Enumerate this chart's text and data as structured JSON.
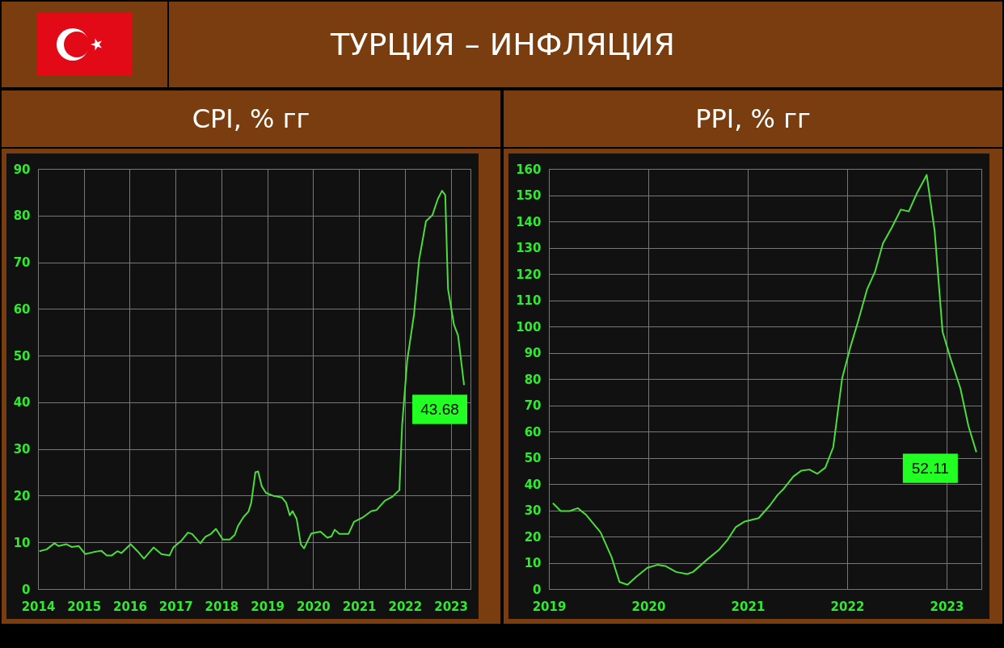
{
  "chart_data": [
    {
      "type": "other",
      "title": "ТУРЦИЯ – ИНФЛЯЦИЯ"
    },
    {
      "type": "line",
      "title": "CPI, % гг",
      "xlim": [
        2014,
        2023.43
      ],
      "xticks": [
        2014,
        2015,
        2016,
        2017,
        2018,
        2019,
        2020,
        2021,
        2022,
        2023
      ],
      "ylim": [
        0,
        90
      ],
      "yticks": [
        0,
        10,
        20,
        30,
        40,
        50,
        60,
        70,
        80,
        90
      ],
      "grid": true,
      "series": [
        {
          "color": "#4cdc3c",
          "x": [
            2014.03,
            2014.19,
            2014.36,
            2014.45,
            2014.62,
            2014.74,
            2014.89,
            2015.03,
            2015.21,
            2015.38,
            2015.5,
            2015.61,
            2015.73,
            2015.82,
            2016.02,
            2016.17,
            2016.31,
            2016.52,
            2016.69,
            2016.87,
            2016.95,
            2017.13,
            2017.27,
            2017.36,
            2017.54,
            2017.65,
            2017.77,
            2017.88,
            2018.03,
            2018.18,
            2018.29,
            2018.36,
            2018.48,
            2018.59,
            2018.65,
            2018.74,
            2018.8,
            2018.88,
            2018.97,
            2019.12,
            2019.32,
            2019.41,
            2019.49,
            2019.55,
            2019.64,
            2019.73,
            2019.8,
            2019.96,
            2020.16,
            2020.31,
            2020.4,
            2020.47,
            2020.57,
            2020.77,
            2020.89,
            2021.09,
            2021.27,
            2021.38,
            2021.56,
            2021.73,
            2021.88,
            2021.94,
            2022.05,
            2022.2,
            2022.31,
            2022.46,
            2022.6,
            2022.72,
            2022.81,
            2022.88,
            2022.94,
            2023.07,
            2023.16,
            2023.29
          ],
          "values": [
            8.1,
            8.5,
            9.8,
            9.2,
            9.6,
            9.0,
            9.2,
            7.5,
            7.9,
            8.2,
            7.2,
            7.2,
            8.1,
            7.7,
            9.6,
            8.1,
            6.5,
            8.9,
            7.5,
            7.2,
            8.9,
            10.4,
            12.1,
            11.8,
            9.8,
            11.2,
            11.8,
            12.9,
            10.6,
            10.6,
            11.6,
            13.5,
            15.4,
            16.6,
            18.5,
            25.0,
            25.2,
            22.0,
            20.6,
            20.0,
            19.6,
            18.5,
            15.8,
            16.7,
            15.0,
            9.6,
            8.7,
            11.9,
            12.3,
            11.0,
            11.3,
            12.7,
            11.8,
            11.8,
            14.4,
            15.4,
            16.7,
            16.9,
            18.9,
            19.8,
            21.2,
            35.1,
            48.9,
            58.9,
            70.5,
            78.8,
            80.1,
            83.6,
            85.3,
            84.4,
            64.3,
            56.6,
            54.3,
            43.68
          ]
        }
      ],
      "annotations": [
        {
          "text": "43.68",
          "x": 2023.29,
          "y": 43.68
        }
      ]
    },
    {
      "type": "line",
      "title": "PPI, % гг",
      "xlim": [
        2019,
        2023.35
      ],
      "xticks": [
        2019,
        2020,
        2021,
        2022,
        2023
      ],
      "ylim": [
        0,
        160
      ],
      "yticks": [
        0,
        10,
        20,
        30,
        40,
        50,
        60,
        70,
        80,
        90,
        100,
        110,
        120,
        130,
        140,
        150,
        160
      ],
      "grid": true,
      "series": [
        {
          "color": "#4cdc3c",
          "x": [
            2019.04,
            2019.12,
            2019.21,
            2019.29,
            2019.37,
            2019.52,
            2019.63,
            2019.71,
            2019.79,
            2019.88,
            2019.99,
            2020.09,
            2020.17,
            2020.28,
            2020.39,
            2020.45,
            2020.6,
            2020.71,
            2020.8,
            2020.88,
            2020.97,
            2021.11,
            2021.22,
            2021.3,
            2021.36,
            2021.46,
            2021.54,
            2021.62,
            2021.7,
            2021.78,
            2021.86,
            2021.95,
            2022.03,
            2022.11,
            2022.2,
            2022.28,
            2022.36,
            2022.45,
            2022.54,
            2022.62,
            2022.7,
            2022.8,
            2022.88,
            2022.96,
            2023.04,
            2023.14,
            2023.22,
            2023.3
          ],
          "values": [
            32.7,
            29.7,
            29.7,
            30.8,
            28.4,
            21.6,
            12.2,
            2.7,
            1.6,
            4.7,
            8.1,
            9.2,
            8.8,
            6.5,
            5.7,
            6.5,
            11.5,
            14.9,
            18.9,
            23.6,
            25.7,
            27.0,
            31.7,
            35.8,
            38.1,
            42.9,
            45.1,
            45.5,
            43.9,
            46.2,
            54.0,
            80.3,
            91.8,
            101.9,
            114.1,
            120.8,
            131.6,
            137.7,
            144.5,
            143.8,
            150.6,
            157.7,
            136.4,
            97.9,
            87.8,
            76.3,
            62.1,
            52.11
          ]
        }
      ],
      "annotations": [
        {
          "text": "52.11",
          "x": 2023.3,
          "y": 52.11
        }
      ]
    }
  ]
}
